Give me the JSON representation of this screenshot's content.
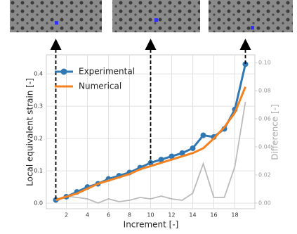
{
  "chart_data": {
    "type": "line",
    "x": [
      1,
      2,
      3,
      4,
      5,
      6,
      7,
      8,
      9,
      10,
      11,
      12,
      13,
      14,
      15,
      16,
      17,
      18,
      19
    ],
    "series": [
      {
        "name": "Experimental",
        "color": "#2f78b4",
        "marker": true,
        "values": [
          0.01,
          0.02,
          0.035,
          0.05,
          0.06,
          0.075,
          0.085,
          0.095,
          0.11,
          0.125,
          0.135,
          0.145,
          0.155,
          0.17,
          0.21,
          0.205,
          0.23,
          0.29,
          0.43
        ]
      },
      {
        "name": "Numerical",
        "color": "#f58220",
        "marker": false,
        "values": [
          0.01,
          0.02,
          0.03,
          0.045,
          0.06,
          0.07,
          0.08,
          0.09,
          0.105,
          0.115,
          0.125,
          0.135,
          0.145,
          0.155,
          0.17,
          0.2,
          0.235,
          0.28,
          0.36
        ]
      },
      {
        "color": "#bbbbbb",
        "axis": "y2",
        "marker": false,
        "values": [
          0.001,
          0.005,
          0.004,
          0.003,
          0.0,
          0.003,
          0.001,
          0.002,
          0.004,
          0.003,
          0.005,
          0.003,
          0.002,
          0.007,
          0.028,
          0.004,
          0.004,
          0.026,
          0.072
        ]
      }
    ],
    "xlabel": "Increment [-]",
    "ylabel": "Local equivalent strain [-]",
    "y2label": "Difference [-]",
    "xlim": [
      0.1,
      19.9
    ],
    "xticks": [
      2,
      4,
      6,
      8,
      10,
      12,
      14,
      16,
      18
    ],
    "ylim": [
      -0.017,
      0.459
    ],
    "yticks": [
      {
        "value": 0,
        "label": "0.0"
      },
      0.1,
      0.2,
      0.3,
      0.4
    ],
    "y2lim": [
      -0.004,
      0.1055
    ],
    "y2ticks": [
      {
        "value": 0,
        "label": "0.00"
      },
      0.02,
      0.04,
      0.06,
      0.08,
      {
        "value": 0.1,
        "label": "0.10"
      }
    ],
    "highlight_x": [
      1,
      10,
      19
    ],
    "grid": true,
    "legend": "upper left"
  }
}
